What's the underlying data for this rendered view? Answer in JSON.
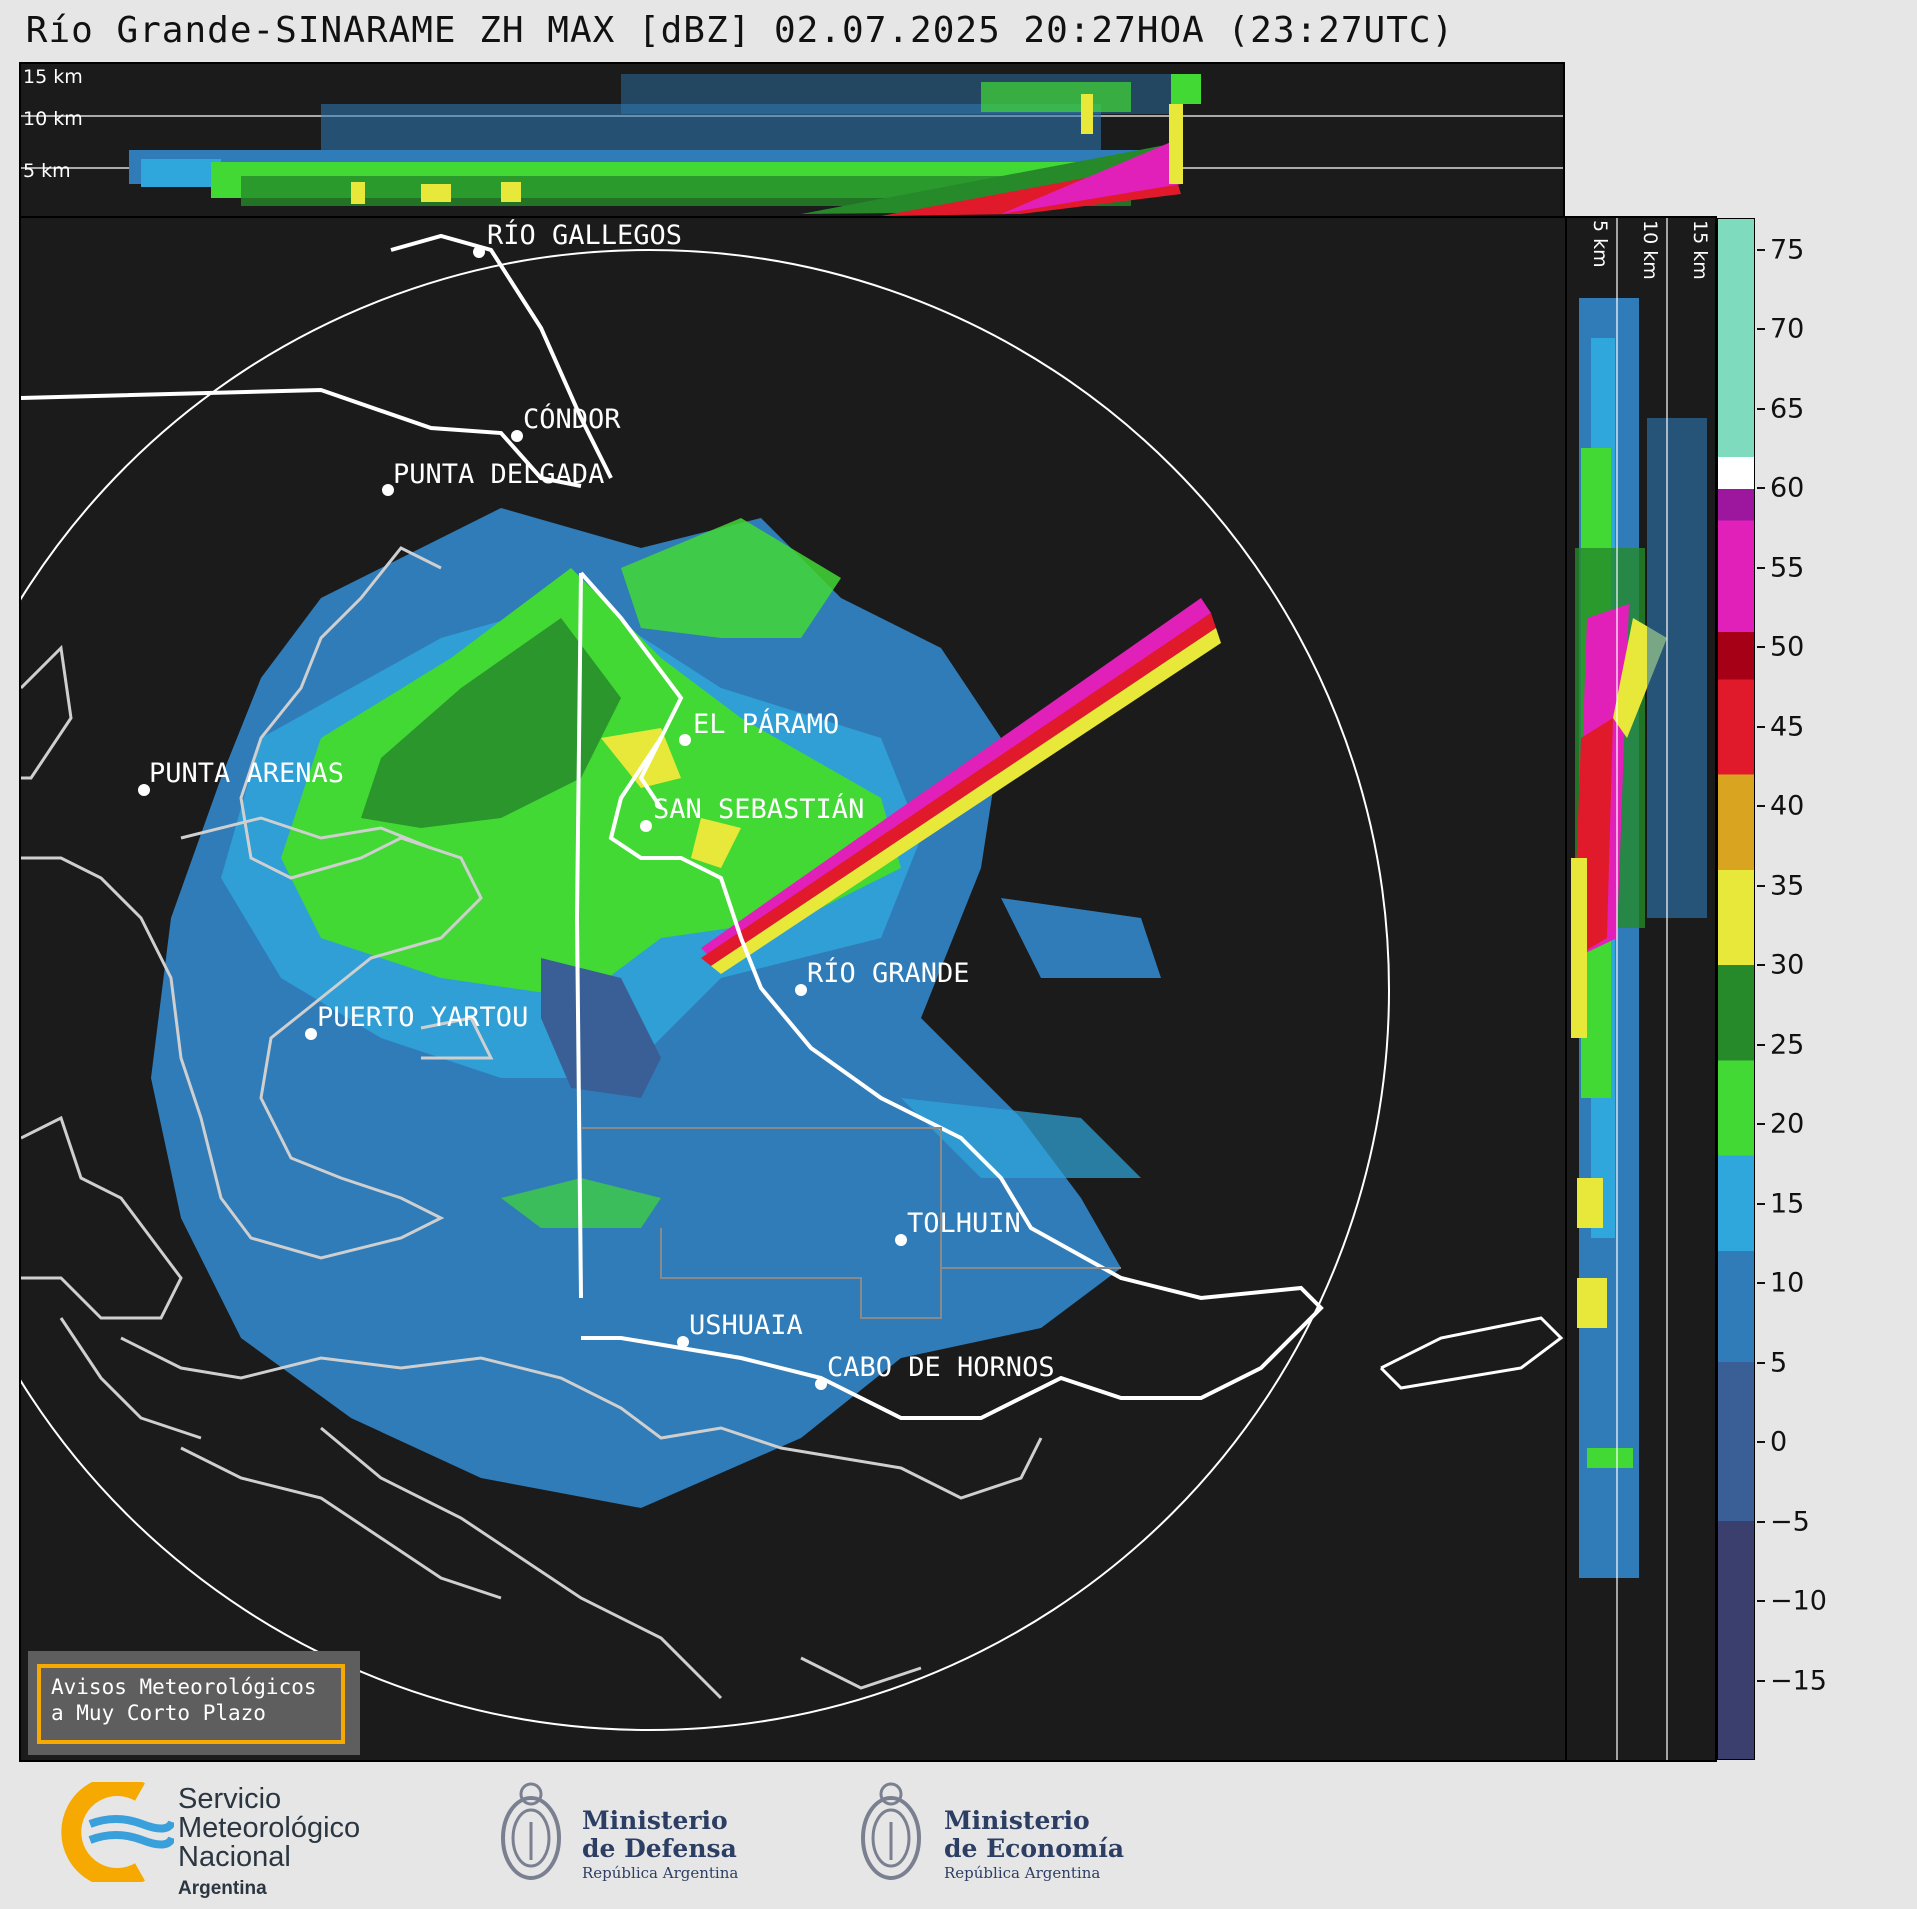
{
  "title": "Río Grande-SINARAME ZH MAX [dBZ] 02.07.2025 20:27HOA (23:27UTC)",
  "top_panel": {
    "altitude_labels": [
      "15 km",
      "10 km",
      "5 km"
    ]
  },
  "side_panel": {
    "altitude_labels": [
      "5 km",
      "10 km",
      "15 km"
    ]
  },
  "cities": [
    {
      "name": "RÍO GALLEGOS"
    },
    {
      "name": "CÓNDOR"
    },
    {
      "name": "PUNTA DELGADA"
    },
    {
      "name": "EL PÁRAMO"
    },
    {
      "name": "SAN SEBASTIÁN"
    },
    {
      "name": "PUNTA ARENAS"
    },
    {
      "name": "RÍO GRANDE"
    },
    {
      "name": "PUERTO YARTOU"
    },
    {
      "name": "TOLHUIN"
    },
    {
      "name": "USHUAIA"
    },
    {
      "name": "CABO DE HORNOS"
    }
  ],
  "colorbar": {
    "unit": "dBZ",
    "min": -20,
    "max": 77,
    "ticks": [
      "75",
      "70",
      "65",
      "60",
      "55",
      "50",
      "45",
      "40",
      "35",
      "30",
      "25",
      "20",
      "15",
      "10",
      "5",
      "0",
      "−5",
      "−10",
      "−15"
    ],
    "tick_values": [
      75,
      70,
      65,
      60,
      55,
      50,
      45,
      40,
      35,
      30,
      25,
      20,
      15,
      10,
      5,
      0,
      -5,
      -10,
      -15
    ],
    "segments": [
      {
        "from": -20,
        "to": -5,
        "color": "#3b3f6e"
      },
      {
        "from": -5,
        "to": 5,
        "color": "#3a5f96"
      },
      {
        "from": 5,
        "to": 12,
        "color": "#2f7cb8"
      },
      {
        "from": 12,
        "to": 18,
        "color": "#2fa7dd"
      },
      {
        "from": 18,
        "to": 24,
        "color": "#42d935"
      },
      {
        "from": 24,
        "to": 30,
        "color": "#268a2a"
      },
      {
        "from": 30,
        "to": 36,
        "color": "#e8e83a"
      },
      {
        "from": 36,
        "to": 42,
        "color": "#d9a520"
      },
      {
        "from": 42,
        "to": 48,
        "color": "#e01a2b"
      },
      {
        "from": 48,
        "to": 51,
        "color": "#a50015"
      },
      {
        "from": 51,
        "to": 58,
        "color": "#e020b8"
      },
      {
        "from": 58,
        "to": 60,
        "color": "#9c179e"
      },
      {
        "from": 60,
        "to": 62,
        "color": "#ffffff"
      },
      {
        "from": 62,
        "to": 77,
        "color": "#7fdbbd"
      }
    ]
  },
  "avisos_box": {
    "line1": "Avisos Meteorológicos",
    "line2": "a Muy Corto Plazo"
  },
  "logos": {
    "smn": {
      "line1": "Servicio",
      "line2": "Meteorológico",
      "line3": "Nacional",
      "line4": "Argentina"
    },
    "defensa": {
      "line1": "Ministerio",
      "line2": "de Defensa",
      "line3": "República Argentina"
    },
    "economia": {
      "line1": "Ministerio",
      "line2": "de Economía",
      "line3": "República Argentina"
    }
  }
}
